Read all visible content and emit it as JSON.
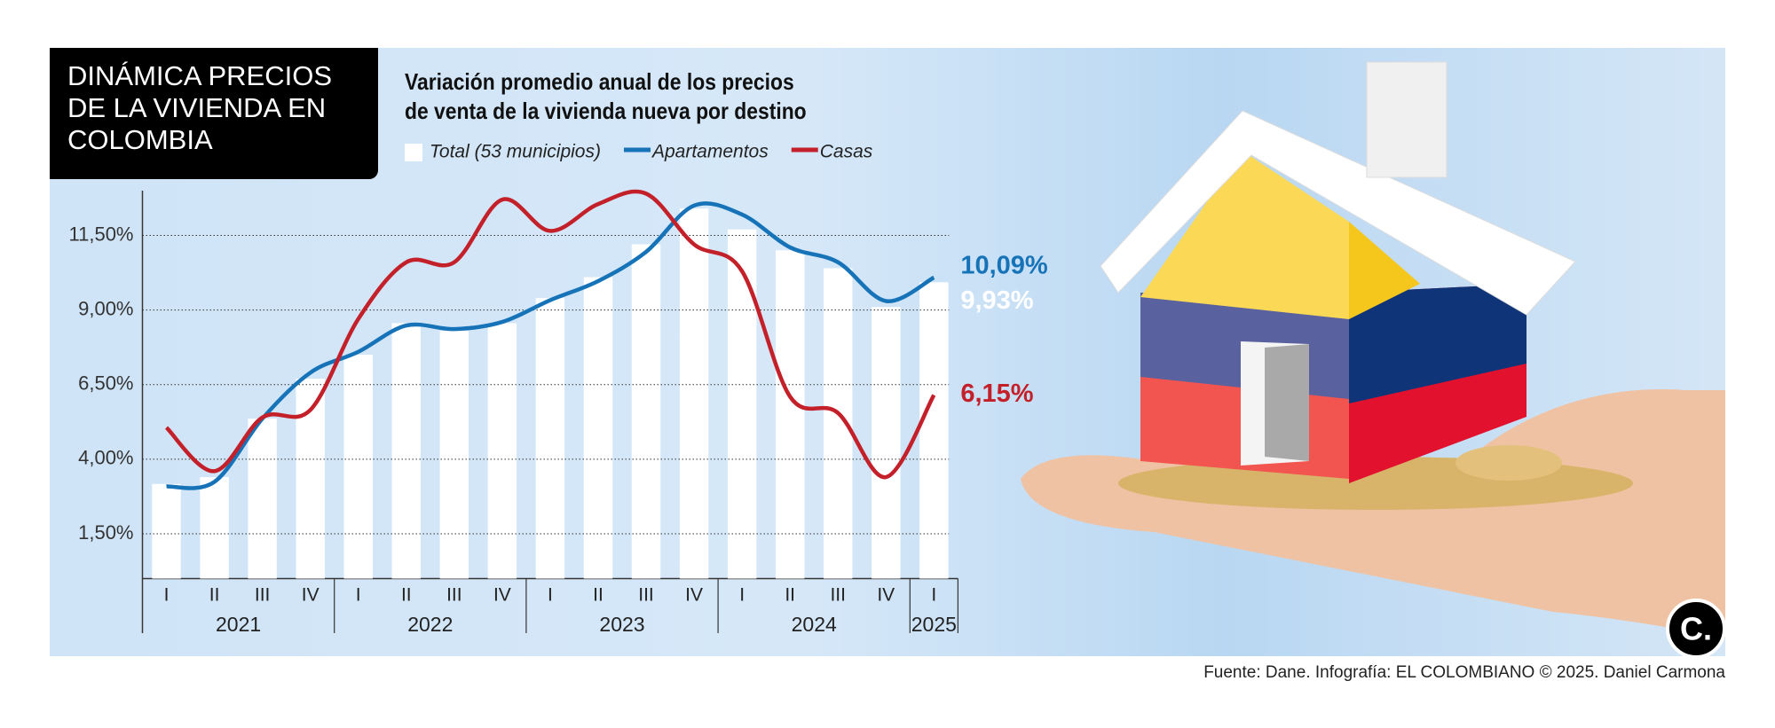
{
  "title": "DINÁMICA PRECIOS DE LA VIVIENDA EN COLOMBIA",
  "source": "Fuente: Dane. Infografía: EL COLOMBIANO © 2025. Daniel Carmona",
  "chart_data": {
    "type": "combo",
    "title": "Variación promedio anual de los precios de venta de la vivienda nueva por destino",
    "categories": [
      "I",
      "II",
      "III",
      "IV",
      "I",
      "II",
      "III",
      "IV",
      "I",
      "II",
      "III",
      "IV",
      "I",
      "II",
      "III",
      "IV",
      "I"
    ],
    "years": [
      "2021",
      "2022",
      "2023",
      "2024",
      "2025"
    ],
    "series": [
      {
        "name": "Total (53 municipios)",
        "type": "bar",
        "color": "#ffffff",
        "values": [
          3.17,
          3.4,
          5.36,
          6.7,
          7.5,
          8.56,
          8.3,
          8.56,
          9.4,
          10.1,
          11.2,
          12.4,
          11.7,
          11.0,
          10.4,
          9.1,
          9.93
        ],
        "value_labels": [
          null,
          null,
          null,
          null,
          null,
          null,
          null,
          null,
          null,
          null,
          null,
          null,
          null,
          null,
          null,
          null,
          "9,93%"
        ]
      },
      {
        "name": "Apartamentos",
        "type": "line",
        "color": "#1673b8",
        "values": [
          3.09,
          3.24,
          5.36,
          6.9,
          7.6,
          8.48,
          8.36,
          8.6,
          9.33,
          9.97,
          10.95,
          12.5,
          12.2,
          11.1,
          10.6,
          9.3,
          10.09
        ],
        "value_labels": [
          null,
          null,
          null,
          null,
          null,
          null,
          null,
          null,
          null,
          null,
          null,
          null,
          null,
          null,
          null,
          null,
          "10,09%"
        ]
      },
      {
        "name": "Casas",
        "type": "line",
        "color": "#c4202a",
        "values": [
          5.06,
          3.6,
          5.4,
          5.65,
          8.7,
          10.6,
          10.6,
          12.7,
          11.65,
          12.55,
          12.9,
          11.2,
          10.3,
          6.1,
          5.55,
          3.4,
          6.15
        ],
        "value_labels": [
          null,
          null,
          null,
          null,
          null,
          null,
          null,
          null,
          null,
          null,
          null,
          null,
          null,
          null,
          null,
          null,
          "6,15%"
        ]
      }
    ],
    "ylim": [
      0,
      13
    ],
    "yticks": [
      {
        "value": 1.5,
        "label": "1,50%"
      },
      {
        "value": 4,
        "label": "4,00%"
      },
      {
        "value": 6.5,
        "label": "6,50%"
      },
      {
        "value": 9,
        "label": "9,00%"
      },
      {
        "value": 11.5,
        "label": "11,50%"
      }
    ],
    "grid": true
  }
}
